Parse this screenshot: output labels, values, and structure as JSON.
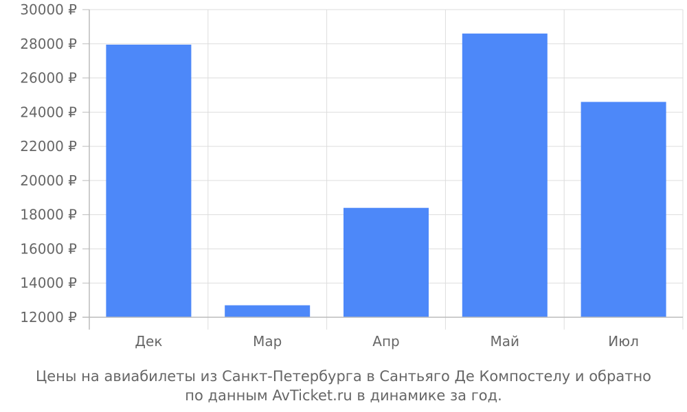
{
  "chart_data": {
    "type": "bar",
    "categories": [
      "Дек",
      "Мар",
      "Апр",
      "Май",
      "Июл"
    ],
    "values": [
      27950,
      12700,
      18400,
      28600,
      24600
    ],
    "ylim": [
      12000,
      30000
    ],
    "yticks": [
      12000,
      14000,
      16000,
      18000,
      20000,
      22000,
      24000,
      26000,
      28000,
      30000
    ],
    "ytick_labels": [
      "12000 ₽",
      "14000 ₽",
      "16000 ₽",
      "18000 ₽",
      "20000 ₽",
      "22000 ₽",
      "24000 ₽",
      "26000 ₽",
      "28000 ₽",
      "30000 ₽"
    ],
    "grid": true,
    "bar_color": "#4d88f9",
    "grid_color": "#dddddd",
    "axis_color": "#bbbbbb",
    "text_color": "#666666"
  },
  "caption": {
    "line1": "Цены на авиабилеты из Санкт-Петербурга в Сантьяго Де Компостелу и обратно",
    "line2": "по данным AvTicket.ru в динамике за год."
  }
}
